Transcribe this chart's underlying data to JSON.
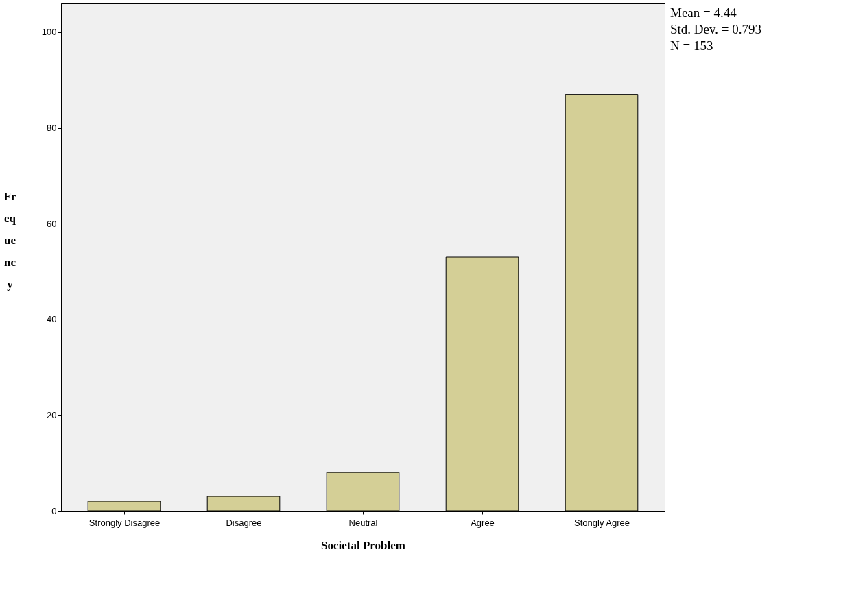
{
  "chart_data": {
    "type": "bar",
    "xlabel": "Societal Problem",
    "ylabel": "Frequency",
    "categories": [
      "Strongly Disagree",
      "Disagree",
      "Neutral",
      "Agree",
      "Stongly Agree"
    ],
    "values": [
      2,
      3,
      8,
      53,
      87
    ],
    "color": "#d4cf96",
    "ylim": [
      0,
      106
    ],
    "yticks": [
      0,
      20,
      40,
      60,
      80,
      100
    ],
    "grid": false,
    "annotations": [
      "Mean = 4.44",
      "Std. Dev. =  0.793",
      "N = 153"
    ]
  }
}
